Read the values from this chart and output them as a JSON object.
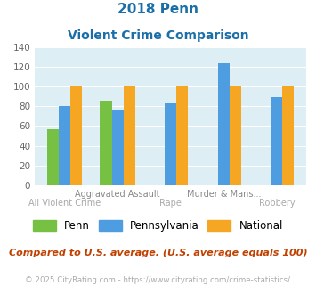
{
  "title_line1": "2018 Penn",
  "title_line2": "Violent Crime Comparison",
  "categories": [
    "All Violent Crime",
    "Aggravated Assault",
    "Rape",
    "Murder & Mans...",
    "Robbery"
  ],
  "penn_values": [
    57,
    86,
    null,
    null,
    null
  ],
  "pennsylvania_values": [
    80,
    76,
    83,
    124,
    89
  ],
  "national_values": [
    100,
    100,
    100,
    100,
    100
  ],
  "penn_color": "#76c043",
  "pennsylvania_color": "#4d9de0",
  "national_color": "#f5a623",
  "ylim": [
    0,
    140
  ],
  "yticks": [
    0,
    20,
    40,
    60,
    80,
    100,
    120,
    140
  ],
  "bg_color": "#ddeef5",
  "title_color": "#1a6fa8",
  "footer_text": "Compared to U.S. average. (U.S. average equals 100)",
  "footer_color": "#c04000",
  "copyright_text": "© 2025 CityRating.com - https://www.cityrating.com/crime-statistics/",
  "copyright_color": "#aaaaaa",
  "legend_labels": [
    "Penn",
    "Pennsylvania",
    "National"
  ],
  "top_labels": [
    "",
    "Aggravated Assault",
    "",
    "Murder & Mans...",
    ""
  ],
  "bottom_labels": [
    "All Violent Crime",
    "",
    "Rape",
    "",
    "Robbery"
  ]
}
